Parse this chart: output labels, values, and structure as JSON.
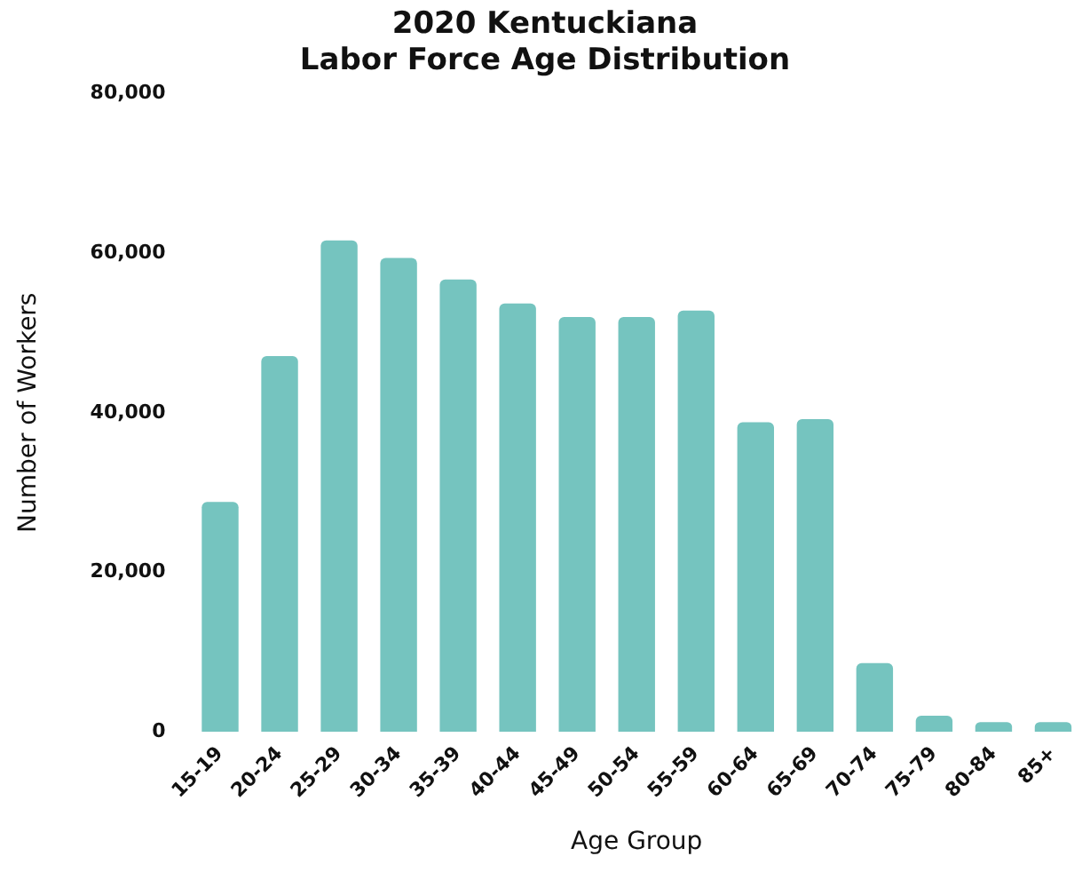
{
  "chart_data": {
    "type": "bar",
    "title": [
      "2020 Kentuckiana",
      "Labor Force Age Distribution"
    ],
    "xlabel": "Age Group",
    "ylabel": "Number of Workers",
    "categories": [
      "15-19",
      "20-24",
      "25-29",
      "30-34",
      "35-39",
      "40-44",
      "45-49",
      "50-54",
      "55-59",
      "60-64",
      "65-69",
      "70-74",
      "75-79",
      "80-84",
      "85+"
    ],
    "values": [
      28800,
      47100,
      61600,
      59400,
      56700,
      53700,
      52000,
      52000,
      52800,
      38800,
      39200,
      8600,
      2000,
      1200,
      1200
    ],
    "color": "#75c4bf",
    "ylim": [
      0,
      80000
    ],
    "yticks": [
      0,
      {
        "value": 20000,
        "label": "20,000"
      },
      {
        "value": 40000,
        "label": "40,000"
      },
      {
        "value": 60000,
        "label": "60,000"
      },
      {
        "value": 80000,
        "label": "80,000"
      }
    ],
    "grid": false,
    "legend": false
  }
}
